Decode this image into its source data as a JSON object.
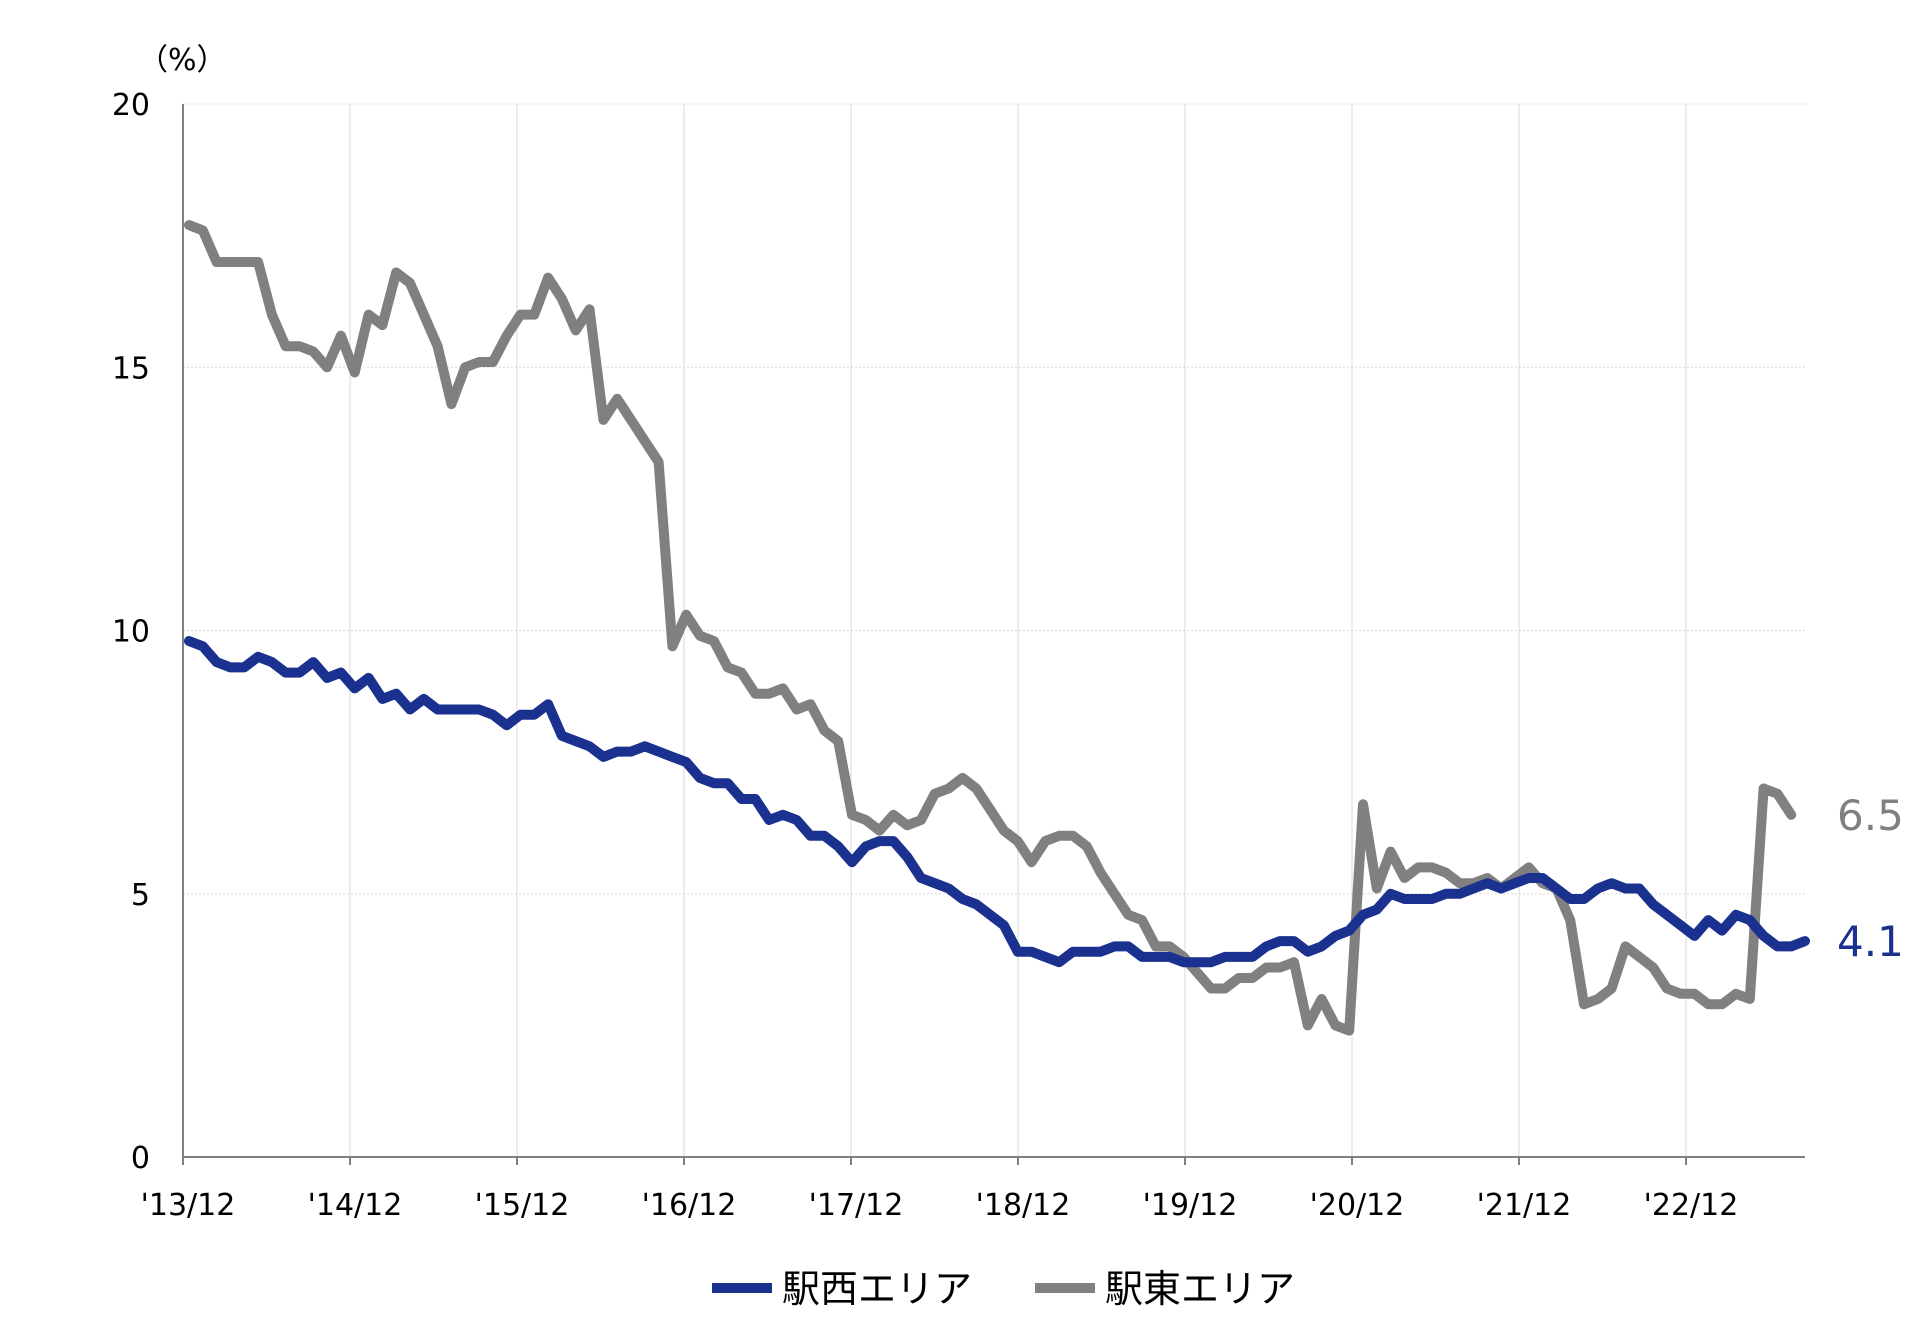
{
  "chart_data": {
    "type": "line",
    "ylabel": "（%）",
    "ylim": [
      0,
      20
    ],
    "yticks": [
      0,
      5,
      10,
      15,
      20
    ],
    "x_tick_labels": [
      "'13/12",
      "'14/12",
      "'15/12",
      "'16/12",
      "'17/12",
      "'18/12",
      "'19/12",
      "'20/12",
      "'21/12",
      "'22/12"
    ],
    "grid": "both",
    "legend_position": "bottom",
    "series": [
      {
        "name": "駅西エリア",
        "color": "#1a318f",
        "end_label": "4.1",
        "values": [
          9.8,
          9.7,
          9.4,
          9.3,
          9.3,
          9.5,
          9.4,
          9.2,
          9.2,
          9.4,
          9.1,
          9.2,
          8.9,
          9.1,
          8.7,
          8.8,
          8.5,
          8.7,
          8.5,
          8.5,
          8.5,
          8.5,
          8.4,
          8.2,
          8.4,
          8.4,
          8.6,
          8.0,
          7.9,
          7.8,
          7.6,
          7.7,
          7.7,
          7.8,
          7.7,
          7.6,
          7.5,
          7.2,
          7.1,
          7.1,
          6.8,
          6.8,
          6.4,
          6.5,
          6.4,
          6.1,
          6.1,
          5.9,
          5.6,
          5.9,
          6.0,
          6.0,
          5.7,
          5.3,
          5.2,
          5.1,
          4.9,
          4.8,
          4.6,
          4.4,
          3.9,
          3.9,
          3.8,
          3.7,
          3.9,
          3.9,
          3.9,
          4.0,
          4.0,
          3.8,
          3.8,
          3.8,
          3.7,
          3.7,
          3.7,
          3.8,
          3.8,
          3.8,
          4.0,
          4.1,
          4.1,
          3.9,
          4.0,
          4.2,
          4.3,
          4.6,
          4.7,
          5.0,
          4.9,
          4.9,
          4.9,
          5.0,
          5.0,
          5.1,
          5.2,
          5.1,
          5.2,
          5.3,
          5.3,
          5.1,
          4.9,
          4.9,
          5.1,
          5.2,
          5.1,
          5.1,
          4.8,
          4.6,
          4.4,
          4.2,
          4.5,
          4.3,
          4.6,
          4.5,
          4.2,
          4.0,
          4.0,
          4.1
        ]
      },
      {
        "name": "駅東エリア",
        "color": "#808080",
        "end_label": "6.5",
        "values": [
          17.7,
          17.6,
          17.0,
          17.0,
          17.0,
          17.0,
          16.0,
          15.4,
          15.4,
          15.3,
          15.0,
          15.6,
          14.9,
          16.0,
          15.8,
          16.8,
          16.6,
          16.0,
          15.4,
          14.3,
          15.0,
          15.1,
          15.1,
          15.6,
          16.0,
          16.0,
          16.7,
          16.3,
          15.7,
          16.1,
          14.0,
          14.4,
          14.0,
          13.6,
          13.2,
          9.7,
          10.3,
          9.9,
          9.8,
          9.3,
          9.2,
          8.8,
          8.8,
          8.9,
          8.5,
          8.6,
          8.1,
          7.9,
          6.5,
          6.4,
          6.2,
          6.5,
          6.3,
          6.4,
          6.9,
          7.0,
          7.2,
          7.0,
          6.6,
          6.2,
          6.0,
          5.6,
          6.0,
          6.1,
          6.1,
          5.9,
          5.4,
          5.0,
          4.6,
          4.5,
          4.0,
          4.0,
          3.8,
          3.5,
          3.2,
          3.2,
          3.4,
          3.4,
          3.6,
          3.6,
          3.7,
          2.5,
          3.0,
          2.5,
          2.4,
          6.7,
          5.1,
          5.8,
          5.3,
          5.5,
          5.5,
          5.4,
          5.2,
          5.2,
          5.3,
          5.1,
          5.3,
          5.5,
          5.2,
          5.1,
          4.5,
          2.9,
          3.0,
          3.2,
          4.0,
          3.8,
          3.6,
          3.2,
          3.1,
          3.1,
          2.9,
          2.9,
          3.1,
          3.0,
          7.0,
          6.9,
          6.5
        ]
      }
    ]
  }
}
